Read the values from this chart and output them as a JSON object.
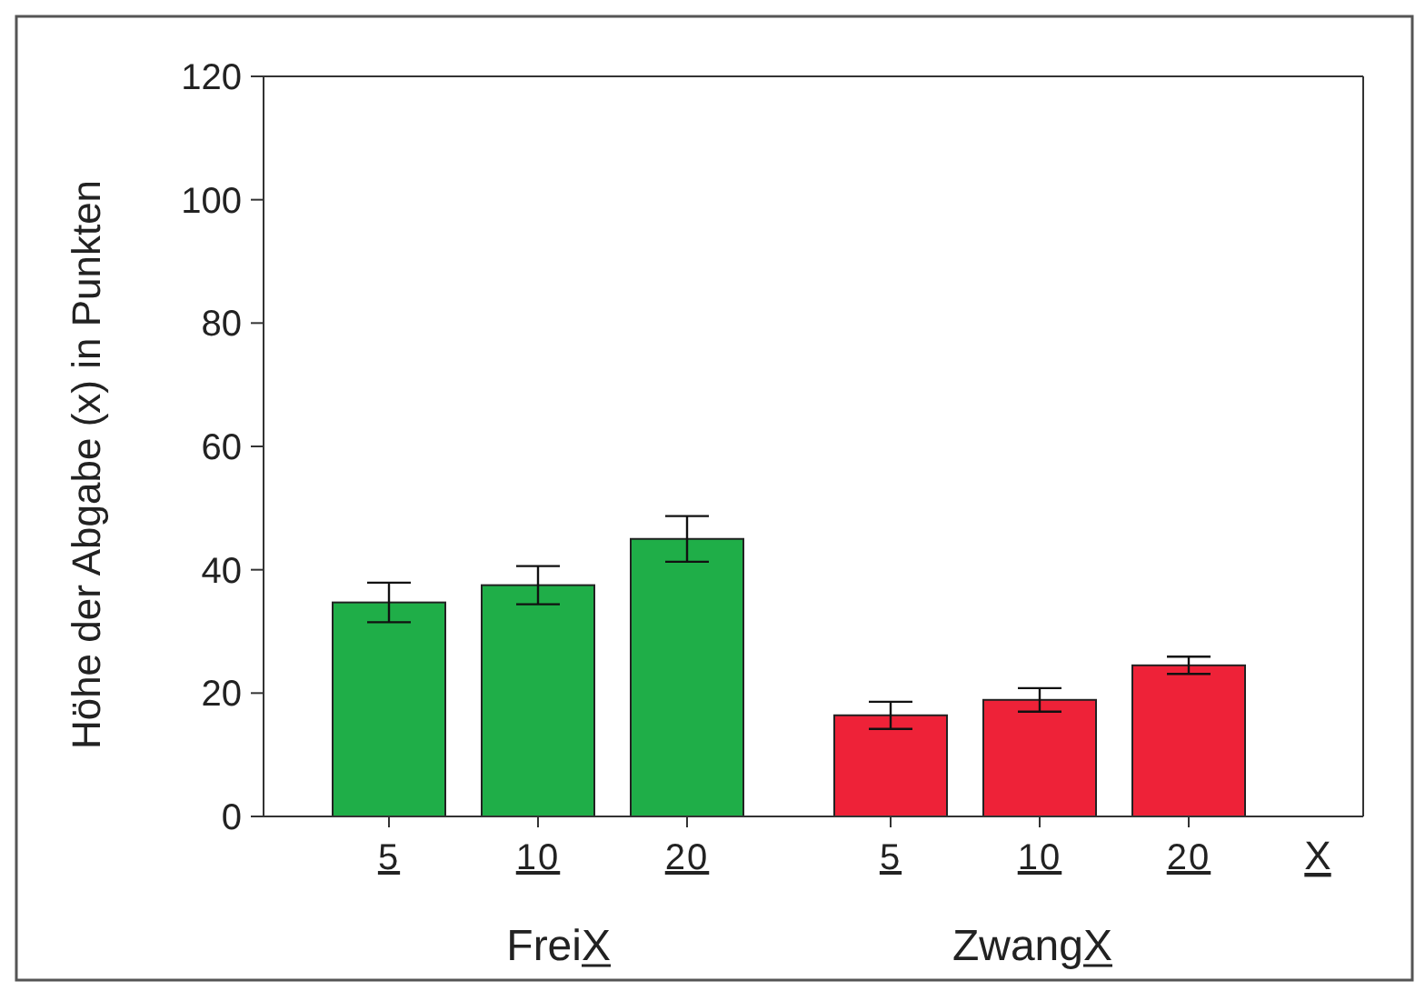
{
  "chart_data": {
    "type": "bar",
    "ylabel": "Höhe der Abgabe (x) in Punkten",
    "categories": [
      "5",
      "10",
      "20",
      "5",
      "10",
      "20"
    ],
    "values": [
      34.7,
      37.5,
      45,
      16.4,
      18.9,
      24.5
    ],
    "errors": [
      3.2,
      3.1,
      3.7,
      2.2,
      1.9,
      1.4
    ],
    "colors": [
      "#1fae48",
      "#1fae48",
      "#1fae48",
      "#ee2238",
      "#ee2238",
      "#ee2238"
    ],
    "ylim": [
      0,
      120
    ],
    "yticks": [
      0,
      20,
      40,
      60,
      80,
      100,
      120
    ],
    "annotations": [
      "FreiX",
      "ZwangX",
      "X"
    ],
    "grid": false
  }
}
